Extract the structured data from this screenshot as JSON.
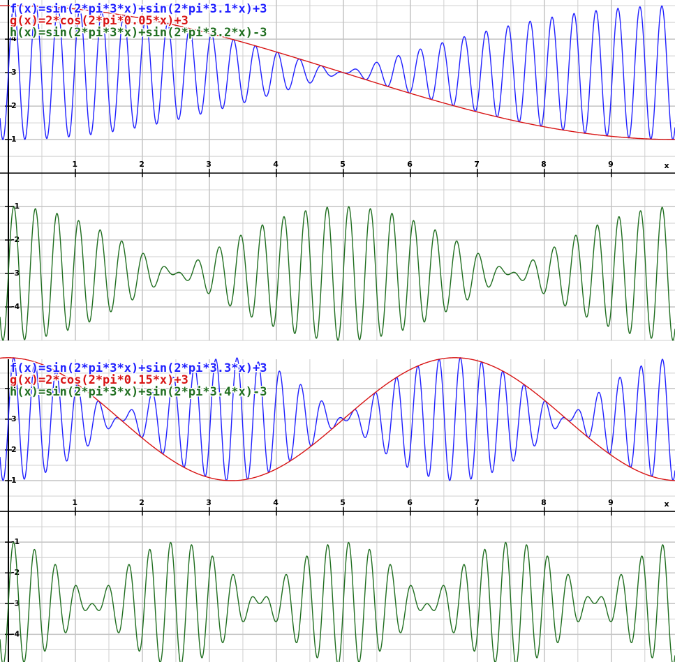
{
  "chart_data": [
    {
      "type": "function",
      "functions": [
        {
          "text": "f(x)=sin(2*pi*3*x)+sin(2*pi*3.1*x)+3",
          "color": "#1f1fff"
        },
        {
          "text": "g(x)=2*cos(2*pi*0.05*x)+3",
          "color": "#d81414"
        },
        {
          "text": "h(x)=sin(2*pi*3*x)+sin(2*pi*3.2*x)-3",
          "color": "#1f6e1f"
        }
      ],
      "xlabel": "x",
      "xlim": [
        -0.125,
        9.95
      ],
      "ylim": [
        -5,
        5.17
      ],
      "xticks": [
        1,
        2,
        3,
        4,
        5,
        6,
        7,
        8,
        9
      ],
      "yticks": [
        -4,
        -3,
        -2,
        -1,
        1,
        2,
        3,
        4
      ],
      "grid": true
    },
    {
      "type": "function",
      "functions": [
        {
          "text": "f(x)=sin(2*pi*3*x)+sin(2*pi*3.3*x)+3",
          "color": "#1f1fff"
        },
        {
          "text": "g(x)=2*cos(2*pi*0.15*x)+3",
          "color": "#d81414"
        },
        {
          "text": "h(x)=sin(2*pi*3*x)+sin(2*pi*3.4*x)-3",
          "color": "#1f6e1f"
        }
      ],
      "xlabel": "x",
      "xlim": [
        -0.125,
        9.95
      ],
      "ylim": [
        -4.9,
        4.95
      ],
      "xticks": [
        1,
        2,
        3,
        4,
        5,
        6,
        7,
        8,
        9
      ],
      "yticks": [
        -4,
        -3,
        -2,
        -1,
        1,
        2,
        3,
        4
      ],
      "grid": true
    }
  ]
}
